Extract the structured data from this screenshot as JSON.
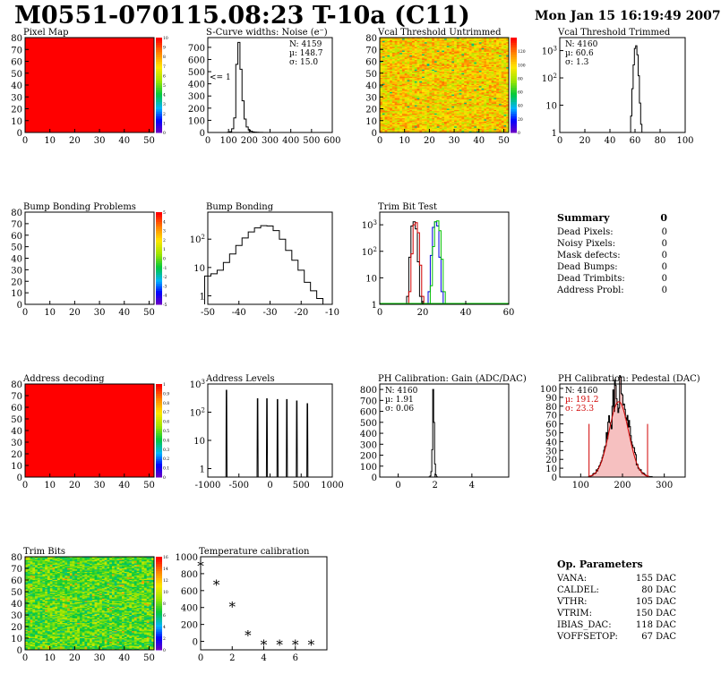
{
  "header": {
    "title": "M0551-070115.08:23 T-10a (C11)",
    "date": "Mon Jan 15 16:19:49 2007"
  },
  "summary": {
    "title": "Summary",
    "value": "0",
    "rows": [
      {
        "label": "Dead Pixels:",
        "value": "0"
      },
      {
        "label": "Noisy Pixels:",
        "value": "0"
      },
      {
        "label": "Mask defects:",
        "value": "0"
      },
      {
        "label": "Dead Bumps:",
        "value": "0"
      },
      {
        "label": "Dead Trimbits:",
        "value": "0"
      },
      {
        "label": "Address Probl:",
        "value": "0"
      }
    ]
  },
  "op_params": {
    "title": "Op. Parameters",
    "rows": [
      {
        "label": "VANA:",
        "value": "155 DAC"
      },
      {
        "label": "CALDEL:",
        "value": "80 DAC"
      },
      {
        "label": "VTHR:",
        "value": "105 DAC"
      },
      {
        "label": "VTRIM:",
        "value": "150 DAC"
      },
      {
        "label": "IBIAS_DAC:",
        "value": "118 DAC"
      },
      {
        "label": "VOFFSETOP:",
        "value": "67 DAC"
      }
    ]
  },
  "chart_data": [
    {
      "id": "pixel-map",
      "type": "heatmap",
      "title": "Pixel Map",
      "xlim": [
        0,
        52
      ],
      "ylim": [
        0,
        80
      ],
      "xticks": [
        0,
        10,
        20,
        30,
        40,
        50
      ],
      "yticks": [
        0,
        10,
        20,
        30,
        40,
        50,
        60,
        70,
        80
      ],
      "fill": "uniform",
      "level": 10,
      "colorbar": [
        0,
        10
      ],
      "colorbar_ticks": [
        0,
        1,
        2,
        3,
        4,
        5,
        6,
        7,
        8,
        9,
        10
      ]
    },
    {
      "id": "scurve-noise",
      "type": "histogram",
      "title": "S-Curve widths: Noise (e⁻)",
      "xlim": [
        0,
        600
      ],
      "ylim": [
        0,
        780
      ],
      "xticks": [
        0,
        100,
        200,
        300,
        400,
        500,
        600
      ],
      "yticks": [
        0,
        100,
        200,
        300,
        400,
        500,
        600,
        700
      ],
      "annotation": "<= 1",
      "stats": [
        "N: 4159",
        "µ: 148.7",
        "σ: 15.0"
      ],
      "x": [
        100,
        110,
        120,
        130,
        140,
        150,
        160,
        170,
        180,
        190,
        200,
        210,
        220,
        230,
        240,
        250,
        260,
        270
      ],
      "values": [
        2,
        6,
        30,
        120,
        560,
        740,
        520,
        260,
        110,
        45,
        20,
        10,
        5,
        3,
        2,
        1,
        1,
        0
      ]
    },
    {
      "id": "vcal-untrimmed",
      "type": "heatmap",
      "title": "Vcal Threshold Untrimmed",
      "xlim": [
        0,
        52
      ],
      "ylim": [
        0,
        80
      ],
      "xticks": [
        0,
        10,
        20,
        30,
        40,
        50
      ],
      "yticks": [
        0,
        10,
        20,
        30,
        40,
        50,
        60,
        70,
        80
      ],
      "fill": "noisy-high",
      "colorbar": [
        0,
        140
      ],
      "colorbar_ticks": [
        0,
        20,
        40,
        60,
        80,
        100,
        120
      ]
    },
    {
      "id": "vcal-trimmed",
      "type": "histogram",
      "title": "Vcal Threshold Trimmed",
      "log": true,
      "xlim": [
        0,
        100
      ],
      "ylim": [
        1,
        3000
      ],
      "xticks": [
        0,
        20,
        40,
        60,
        80,
        100
      ],
      "yticks": [
        1,
        10,
        100,
        1000
      ],
      "stats": [
        "N: 4160",
        "µ: 60.6",
        "σ: 1.3"
      ],
      "x": [
        56,
        57,
        58,
        59,
        60,
        61,
        62,
        63,
        64,
        65,
        66
      ],
      "values": [
        1,
        4,
        40,
        300,
        1200,
        1500,
        700,
        120,
        12,
        2,
        1
      ]
    },
    {
      "id": "bump-problems",
      "type": "heatmap",
      "title": "Bump Bonding Problems",
      "xlim": [
        0,
        52
      ],
      "ylim": [
        0,
        80
      ],
      "xticks": [
        0,
        10,
        20,
        30,
        40,
        50
      ],
      "yticks": [
        0,
        10,
        20,
        30,
        40,
        50,
        60,
        70,
        80
      ],
      "fill": "empty",
      "colorbar": [
        -5,
        5
      ],
      "colorbar_ticks": [
        -5,
        -4,
        -3,
        -2,
        -1,
        0,
        1,
        2,
        3,
        4,
        5
      ]
    },
    {
      "id": "bump-bonding",
      "type": "histogram",
      "title": "Bump Bonding",
      "log": true,
      "xlim": [
        -50,
        -10
      ],
      "ylim": [
        0.5,
        900
      ],
      "xticks": [
        -50,
        -40,
        -30,
        -20,
        -10
      ],
      "yticks": [
        1,
        10,
        100
      ],
      "x": [
        -50,
        -48,
        -46,
        -44,
        -42,
        -40,
        -38,
        -36,
        -34,
        -32,
        -30,
        -28,
        -26,
        -24,
        -22,
        -20,
        -18,
        -16,
        -14
      ],
      "values": [
        5,
        6,
        8,
        15,
        30,
        60,
        110,
        180,
        250,
        300,
        290,
        200,
        100,
        40,
        18,
        8,
        3,
        1.5,
        0.8
      ]
    },
    {
      "id": "trim-bit-test",
      "type": "histogram",
      "title": "Trim Bit Test",
      "log": true,
      "xlim": [
        0,
        60
      ],
      "ylim": [
        1,
        3000
      ],
      "xticks": [
        0,
        20,
        40,
        60
      ],
      "yticks": [
        1,
        10,
        100,
        1000
      ],
      "series": [
        {
          "name": "",
          "color": "#000000",
          "x": [
            13,
            14,
            15,
            16,
            17,
            18,
            19
          ],
          "values": [
            2,
            60,
            900,
            1300,
            700,
            40,
            2
          ]
        },
        {
          "name": "",
          "color": "#d00000",
          "x": [
            14,
            15,
            16,
            17,
            18,
            19,
            20
          ],
          "values": [
            3,
            80,
            1000,
            1200,
            500,
            30,
            2
          ]
        },
        {
          "name": "",
          "color": "#0000e0",
          "x": [
            23,
            24,
            25,
            26,
            27,
            28,
            29
          ],
          "values": [
            3,
            70,
            800,
            1300,
            900,
            60,
            3
          ]
        },
        {
          "name": "",
          "color": "#00c000",
          "x": [
            24,
            25,
            26,
            27,
            28,
            29,
            30
          ],
          "values": [
            5,
            150,
            1300,
            1400,
            600,
            50,
            3
          ]
        }
      ]
    },
    {
      "id": "address-decoding",
      "type": "heatmap",
      "title": "Address decoding",
      "xlim": [
        0,
        52
      ],
      "ylim": [
        0,
        80
      ],
      "xticks": [
        0,
        10,
        20,
        30,
        40,
        50
      ],
      "yticks": [
        0,
        10,
        20,
        30,
        40,
        50,
        60,
        70,
        80
      ],
      "fill": "uniform",
      "level": 1,
      "colorbar": [
        0,
        1
      ],
      "colorbar_ticks": [
        0,
        0.1,
        0.2,
        0.3,
        0.4,
        0.5,
        0.6,
        0.7,
        0.8,
        0.9,
        1
      ]
    },
    {
      "id": "address-levels",
      "type": "histogram",
      "title": "Address Levels",
      "log": true,
      "xlim": [
        -1000,
        1000
      ],
      "ylim": [
        0.5,
        1000
      ],
      "xticks": [
        -1000,
        -500,
        0,
        500,
        1000
      ],
      "yticks": [
        1,
        10,
        100,
        1000
      ],
      "peaks": [
        -700,
        -200,
        -50,
        120,
        270,
        430,
        600
      ],
      "peak_values": [
        600,
        300,
        300,
        280,
        280,
        250,
        200
      ]
    },
    {
      "id": "ph-gain",
      "type": "histogram",
      "title": "PH Calibration: Gain (ADC/DAC)",
      "xlim": [
        -1,
        6
      ],
      "ylim": [
        0,
        850
      ],
      "xticks": [
        0,
        2,
        4
      ],
      "yticks": [
        0,
        100,
        200,
        300,
        400,
        500,
        600,
        700,
        800
      ],
      "stats": [
        "N: 4160",
        "µ: 1.91",
        "σ: 0.06"
      ],
      "x": [
        1.7,
        1.75,
        1.8,
        1.85,
        1.9,
        1.95,
        2.0,
        2.05,
        2.1
      ],
      "values": [
        2,
        10,
        50,
        250,
        800,
        500,
        120,
        20,
        3
      ]
    },
    {
      "id": "ph-pedestal",
      "type": "histogram",
      "title": "PH Calibration: Pedestal (DAC)",
      "xlim": [
        50,
        350
      ],
      "ylim": [
        0,
        105
      ],
      "xticks": [
        100,
        200,
        300
      ],
      "yticks": [
        0,
        10,
        20,
        30,
        40,
        50,
        60,
        70,
        80,
        90,
        100
      ],
      "stats": [
        "N: 4160",
        "µ: 191.2",
        "σ: 23.3"
      ],
      "stats_colors": [
        "#000000",
        "#d00000",
        "#d00000"
      ],
      "fit_bounds": [
        120,
        260
      ]
    },
    {
      "id": "trim-bits",
      "type": "heatmap",
      "title": "Trim Bits",
      "xlim": [
        0,
        52
      ],
      "ylim": [
        0,
        80
      ],
      "xticks": [
        0,
        10,
        20,
        30,
        40,
        50
      ],
      "yticks": [
        0,
        10,
        20,
        30,
        40,
        50,
        60,
        70,
        80
      ],
      "fill": "noisy-mid",
      "colorbar": [
        0,
        16
      ],
      "colorbar_ticks": [
        0,
        2,
        4,
        6,
        8,
        10,
        12,
        14,
        16
      ]
    },
    {
      "id": "temperature-calibration",
      "type": "scatter",
      "title": "Temperature calibration",
      "xlim": [
        0,
        8
      ],
      "ylim": [
        -100,
        1000
      ],
      "xticks": [
        0,
        2,
        4,
        6
      ],
      "yticks": [
        0,
        200,
        400,
        600,
        800,
        1000
      ],
      "x": [
        0,
        1,
        2,
        3,
        4,
        5,
        6,
        7
      ],
      "values": [
        900,
        680,
        420,
        80,
        -30,
        -30,
        -30,
        -30
      ]
    }
  ]
}
